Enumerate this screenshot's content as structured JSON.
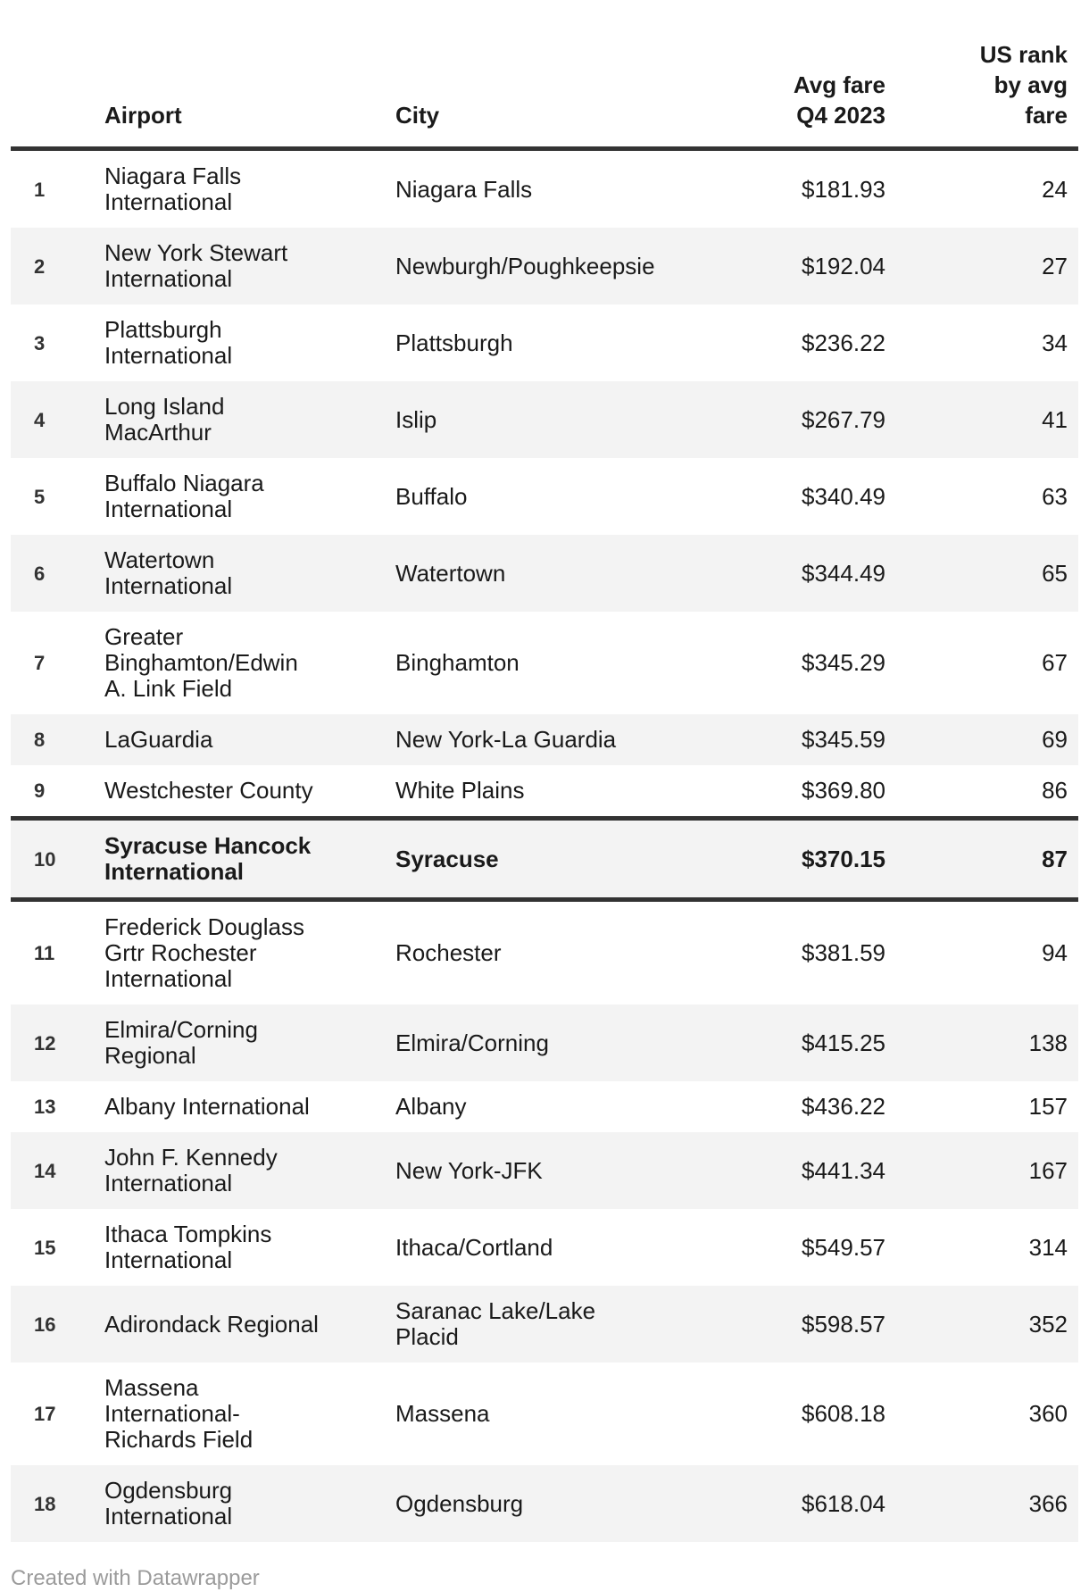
{
  "table": {
    "headers": {
      "number": "",
      "airport": "Airport",
      "city": "City",
      "fare": "Avg fare\nQ4 2023",
      "us_rank": "US rank\nby avg\nfare"
    },
    "rows": [
      {
        "n": "1",
        "airport": "Niagara Falls\nInternational",
        "city": "Niagara Falls",
        "fare": "$181.93",
        "us_rank": "24",
        "highlight": false
      },
      {
        "n": "2",
        "airport": "New York Stewart\nInternational",
        "city": "Newburgh/Poughkeepsie",
        "fare": "$192.04",
        "us_rank": "27",
        "highlight": false
      },
      {
        "n": "3",
        "airport": "Plattsburgh\nInternational",
        "city": "Plattsburgh",
        "fare": "$236.22",
        "us_rank": "34",
        "highlight": false
      },
      {
        "n": "4",
        "airport": "Long Island\nMacArthur",
        "city": "Islip",
        "fare": "$267.79",
        "us_rank": "41",
        "highlight": false
      },
      {
        "n": "5",
        "airport": "Buffalo Niagara\nInternational",
        "city": "Buffalo",
        "fare": "$340.49",
        "us_rank": "63",
        "highlight": false
      },
      {
        "n": "6",
        "airport": "Watertown\nInternational",
        "city": "Watertown",
        "fare": "$344.49",
        "us_rank": "65",
        "highlight": false
      },
      {
        "n": "7",
        "airport": "Greater\nBinghamton/Edwin\nA. Link Field",
        "city": "Binghamton",
        "fare": "$345.29",
        "us_rank": "67",
        "highlight": false
      },
      {
        "n": "8",
        "airport": "LaGuardia",
        "city": "New York-La Guardia",
        "fare": "$345.59",
        "us_rank": "69",
        "highlight": false
      },
      {
        "n": "9",
        "airport": "Westchester County",
        "city": "White Plains",
        "fare": "$369.80",
        "us_rank": "86",
        "highlight": false
      },
      {
        "n": "10",
        "airport": "Syracuse Hancock\nInternational",
        "city": "Syracuse",
        "fare": "$370.15",
        "us_rank": "87",
        "highlight": true
      },
      {
        "n": "11",
        "airport": "Frederick Douglass\nGrtr Rochester\nInternational",
        "city": "Rochester",
        "fare": "$381.59",
        "us_rank": "94",
        "highlight": false
      },
      {
        "n": "12",
        "airport": "Elmira/Corning\nRegional",
        "city": "Elmira/Corning",
        "fare": "$415.25",
        "us_rank": "138",
        "highlight": false
      },
      {
        "n": "13",
        "airport": "Albany International",
        "city": "Albany",
        "fare": "$436.22",
        "us_rank": "157",
        "highlight": false
      },
      {
        "n": "14",
        "airport": "John F. Kennedy\nInternational",
        "city": "New York-JFK",
        "fare": "$441.34",
        "us_rank": "167",
        "highlight": false
      },
      {
        "n": "15",
        "airport": "Ithaca Tompkins\nInternational",
        "city": "Ithaca/Cortland",
        "fare": "$549.57",
        "us_rank": "314",
        "highlight": false
      },
      {
        "n": "16",
        "airport": "Adirondack Regional",
        "city": "Saranac Lake/Lake Placid",
        "fare": "$598.57",
        "us_rank": "352",
        "highlight": false
      },
      {
        "n": "17",
        "airport": "Massena\nInternational-\nRichards Field",
        "city": "Massena",
        "fare": "$608.18",
        "us_rank": "360",
        "highlight": false
      },
      {
        "n": "18",
        "airport": "Ogdensburg\nInternational",
        "city": "Ogdensburg",
        "fare": "$618.04",
        "us_rank": "366",
        "highlight": false
      }
    ]
  },
  "footer": {
    "credit": "Created with Datawrapper"
  },
  "colors": {
    "text": "#1a1a1a",
    "row_number": "#333333",
    "rule": "#333333",
    "stripe_bg": "#f3f3f3",
    "highlight_bg": "#f3f3f3",
    "credit": "#9b9b9b",
    "page_bg": "#ffffff"
  },
  "chart_data": {
    "type": "table",
    "title": "",
    "columns": [
      "",
      "Airport",
      "City",
      "Avg fare Q4 2023",
      "US rank by avg fare"
    ],
    "rows": [
      [
        1,
        "Niagara Falls International",
        "Niagara Falls",
        181.93,
        24
      ],
      [
        2,
        "New York Stewart International",
        "Newburgh/Poughkeepsie",
        192.04,
        27
      ],
      [
        3,
        "Plattsburgh International",
        "Plattsburgh",
        236.22,
        34
      ],
      [
        4,
        "Long Island MacArthur",
        "Islip",
        267.79,
        41
      ],
      [
        5,
        "Buffalo Niagara International",
        "Buffalo",
        340.49,
        63
      ],
      [
        6,
        "Watertown International",
        "Watertown",
        344.49,
        65
      ],
      [
        7,
        "Greater Binghamton/Edwin A. Link Field",
        "Binghamton",
        345.29,
        67
      ],
      [
        8,
        "LaGuardia",
        "New York-La Guardia",
        345.59,
        69
      ],
      [
        9,
        "Westchester County",
        "White Plains",
        369.8,
        86
      ],
      [
        10,
        "Syracuse Hancock International",
        "Syracuse",
        370.15,
        87
      ],
      [
        11,
        "Frederick Douglass Grtr Rochester International",
        "Rochester",
        381.59,
        94
      ],
      [
        12,
        "Elmira/Corning Regional",
        "Elmira/Corning",
        415.25,
        138
      ],
      [
        13,
        "Albany International",
        "Albany",
        436.22,
        157
      ],
      [
        14,
        "John F. Kennedy International",
        "New York-JFK",
        441.34,
        167
      ],
      [
        15,
        "Ithaca Tompkins International",
        "Ithaca/Cortland",
        549.57,
        314
      ],
      [
        16,
        "Adirondack Regional",
        "Saranac Lake/Lake Placid",
        598.57,
        352
      ],
      [
        17,
        "Massena International-Richards Field",
        "Massena",
        608.18,
        360
      ],
      [
        18,
        "Ogdensburg International",
        "Ogdensburg",
        618.04,
        366
      ]
    ],
    "highlighted_row": 10,
    "layout_hints": {
      "striped_rows": "even",
      "header_rule": "thick dark",
      "highlight_rule": "thick dark above and below row 10",
      "numeric_columns_right_aligned": true
    }
  }
}
